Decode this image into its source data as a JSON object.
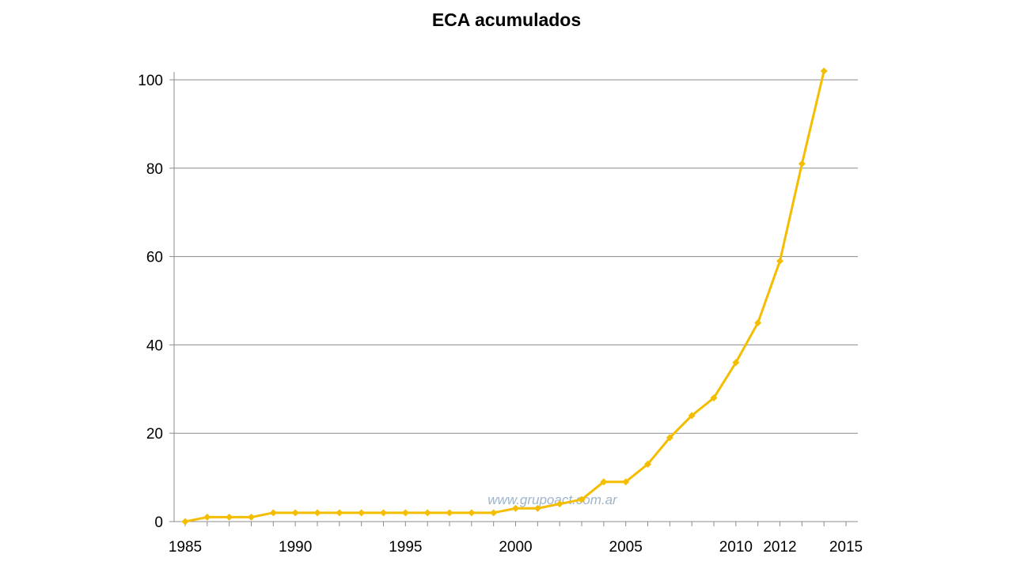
{
  "chart_data": {
    "type": "line",
    "title": "ECA acumulados",
    "xlabel": "",
    "ylabel": "",
    "xlim": [
      1985,
      2015
    ],
    "ylim": [
      0,
      100
    ],
    "grid": true,
    "x_ticks": [
      1985,
      1990,
      1995,
      2000,
      2005,
      2010,
      2012,
      2015
    ],
    "y_ticks": [
      0,
      20,
      40,
      60,
      80,
      100
    ],
    "series": [
      {
        "color": "#f5bd00",
        "x": [
          1985,
          1986,
          1987,
          1988,
          1989,
          1990,
          1991,
          1992,
          1993,
          1994,
          1995,
          1996,
          1997,
          1998,
          1999,
          2000,
          2001,
          2002,
          2003,
          2004,
          2005,
          2006,
          2007,
          2008,
          2009,
          2010,
          2011,
          2012,
          2013,
          2014
        ],
        "y": [
          0,
          1,
          1,
          1,
          2,
          2,
          2,
          2,
          2,
          2,
          2,
          2,
          2,
          2,
          2,
          3,
          3,
          4,
          5,
          9,
          9,
          13,
          19,
          24,
          28,
          36,
          45,
          59,
          81,
          102
        ]
      }
    ],
    "watermark": "www.grupoact.com.ar"
  }
}
